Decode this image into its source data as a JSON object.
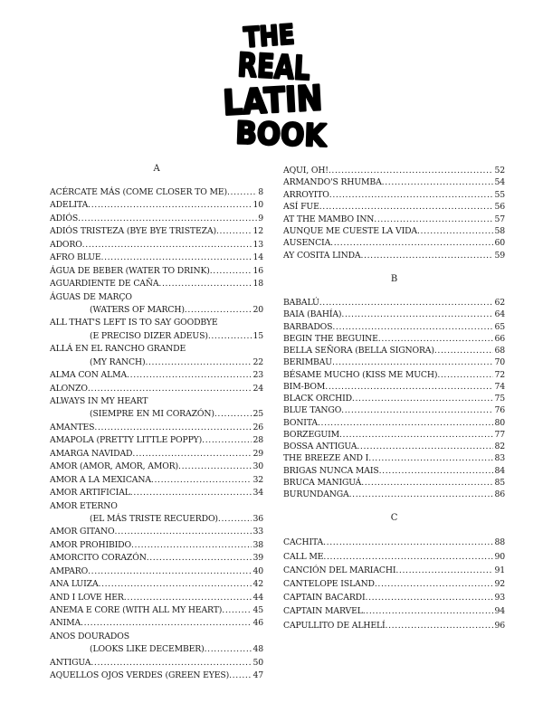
{
  "logo": {
    "lines": [
      "THE",
      "REAL",
      "LATIN",
      "BOOK"
    ]
  },
  "sections": {
    "a": {
      "letter": "A",
      "left": [
        {
          "title": "ACÉRCATE MÁS (COME CLOSER TO ME)",
          "page": "8"
        },
        {
          "title": "ADELITA",
          "page": "10"
        },
        {
          "title": "ADIÓS",
          "page": "9"
        },
        {
          "title": "ADIÓS TRISTEZA (BYE BYE TRISTEZA)",
          "page": "12"
        },
        {
          "title": "ADORO",
          "page": "13"
        },
        {
          "title": "AFRO BLUE",
          "page": "14"
        },
        {
          "title": "ÁGUA DE BEBER (WATER TO DRINK)",
          "page": "16"
        },
        {
          "title": "AGUARDIENTE DE CAÑA",
          "page": "18"
        },
        {
          "title": "ÁGUAS DE MARÇO",
          "sub": "(WATERS OF MARCH)",
          "page": "20"
        },
        {
          "title": "ALL THAT'S LEFT IS TO SAY GOODBYE",
          "sub": "(E PRECISO DIZER ADEUS)",
          "page": "15"
        },
        {
          "title": "ALLÁ EN EL RANCHO GRANDE",
          "sub": "(MY RANCH)",
          "page": "22"
        },
        {
          "title": "ALMA CON ALMA",
          "page": "23"
        },
        {
          "title": "ALONZO",
          "page": "24"
        },
        {
          "title": "ALWAYS IN MY HEART",
          "sub": "(SIEMPRE EN MI CORAZÓN)",
          "page": "25"
        },
        {
          "title": "AMANTES",
          "page": "26"
        },
        {
          "title": "AMAPOLA (PRETTY LITTLE POPPY)",
          "page": "28"
        },
        {
          "title": "AMARGA NAVIDAD",
          "page": "29"
        },
        {
          "title": "AMOR (AMOR, AMOR, AMOR)",
          "page": "30"
        },
        {
          "title": "AMOR A LA MEXICANA",
          "page": "32"
        },
        {
          "title": "AMOR ARTIFICIAL",
          "page": "34"
        },
        {
          "title": "AMOR ETERNO",
          "sub": "(EL MÁS TRISTE RECUERDO)",
          "page": "36"
        },
        {
          "title": "AMOR GITANO",
          "page": "33"
        },
        {
          "title": "AMOR PROHIBIDO",
          "page": "38"
        },
        {
          "title": "AMORCITO CORAZÓN",
          "page": "39"
        },
        {
          "title": "AMPARO",
          "page": "40"
        },
        {
          "title": "ANA LUIZA",
          "page": "42"
        },
        {
          "title": "AND I LOVE HER",
          "page": "44"
        },
        {
          "title": "ANEMA E CORE (WITH ALL MY HEART)",
          "page": "45"
        },
        {
          "title": "ANIMA",
          "page": "46"
        },
        {
          "title": "ANOS DOURADOS",
          "sub": "(LOOKS LIKE DECEMBER)",
          "page": "48"
        },
        {
          "title": "ANTIGUA",
          "page": "50"
        },
        {
          "title": "AQUELLOS OJOS VERDES (GREEN EYES)",
          "page": "47"
        }
      ],
      "right": [
        {
          "title": "AQUI, OH!",
          "page": "52"
        },
        {
          "title": "ARMANDO'S RHUMBA",
          "page": "54"
        },
        {
          "title": "ARROYITO",
          "page": "55"
        },
        {
          "title": "ASÍ FUE",
          "page": "56"
        },
        {
          "title": "AT THE MAMBO INN",
          "page": "57"
        },
        {
          "title": "AUNQUE ME CUESTE LA VIDA",
          "page": "58"
        },
        {
          "title": "AUSENCIA",
          "page": "60"
        },
        {
          "title": "AY COSITA LINDA",
          "page": "59"
        }
      ]
    },
    "b": {
      "letter": "B",
      "entries": [
        {
          "title": "BABALÚ",
          "page": "62"
        },
        {
          "title": "BAIA (BAHÍA)",
          "page": "64"
        },
        {
          "title": "BARBADOS",
          "page": "65"
        },
        {
          "title": "BEGIN THE BEGUINE",
          "page": "66"
        },
        {
          "title": "BELLA SEÑORA (BELLA SIGNORA)",
          "page": "68"
        },
        {
          "title": "BERIMBAU",
          "page": "70"
        },
        {
          "title": "BÉSAME MUCHO (KISS ME MUCH)",
          "page": "72"
        },
        {
          "title": "BIM-BOM",
          "page": "74"
        },
        {
          "title": "BLACK ORCHID",
          "page": "75"
        },
        {
          "title": "BLUE TANGO",
          "page": "76"
        },
        {
          "title": "BONITA",
          "page": "80"
        },
        {
          "title": "BORZEGUIM",
          "page": "77"
        },
        {
          "title": "BOSSA ANTIGUA",
          "page": "82"
        },
        {
          "title": "THE BREEZE AND I",
          "page": "83"
        },
        {
          "title": "BRIGAS NUNCA MAIS",
          "page": "84"
        },
        {
          "title": "BRUCA MANIGUÁ",
          "page": "85"
        },
        {
          "title": "BURUNDANGA",
          "page": "86"
        }
      ]
    },
    "c": {
      "letter": "C",
      "entries": [
        {
          "title": "CACHITA",
          "page": "88"
        },
        {
          "title": "CALL ME",
          "page": "90"
        },
        {
          "title": "CANCIÓN DEL MARIACHI",
          "page": "91"
        },
        {
          "title": "CANTELOPE ISLAND",
          "page": "92"
        },
        {
          "title": "CAPTAIN BACARDI",
          "page": "93"
        },
        {
          "title": "CAPTAIN MARVEL",
          "page": "94"
        },
        {
          "title": "CAPULLITO DE ALHELÍ",
          "page": "96"
        }
      ]
    }
  }
}
